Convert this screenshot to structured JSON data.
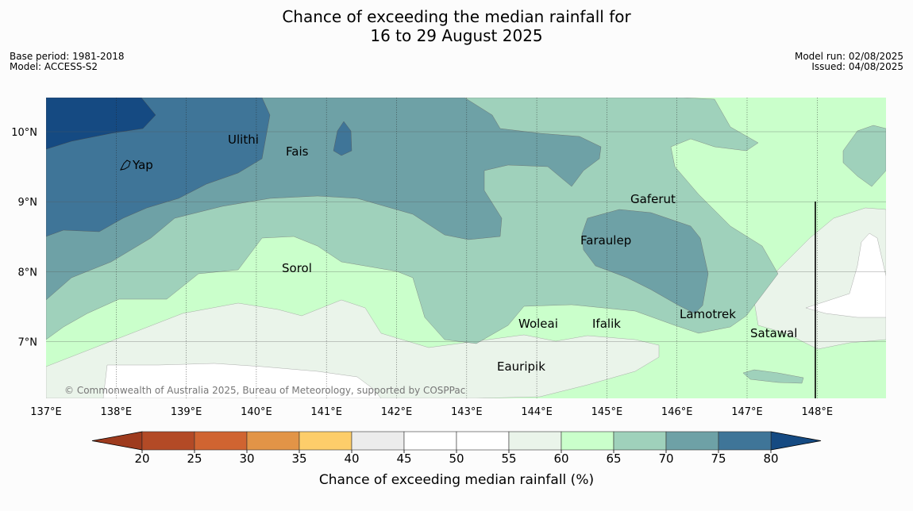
{
  "title": {
    "line1": "Chance of exceeding the median rainfall for",
    "line2": "16 to 29 August 2025"
  },
  "meta": {
    "base_period": "Base period: 1981-2018",
    "model": "Model: ACCESS-S2",
    "model_run": "Model run: 02/08/2025",
    "issued": "Issued: 04/08/2025"
  },
  "map": {
    "lon_labels": [
      "137°E",
      "138°E",
      "139°E",
      "140°E",
      "141°E",
      "142°E",
      "143°E",
      "144°E",
      "145°E",
      "146°E",
      "147°E",
      "148°E"
    ],
    "lat_labels": [
      "10°N",
      "9°N",
      "8°N",
      "7°N"
    ],
    "places": [
      "Yap",
      "Ulithi",
      "Fais",
      "Gaferut",
      "Faraulep",
      "Sorol",
      "Woleai",
      "Ifalik",
      "Lamotrek",
      "Satawal",
      "Eauripik"
    ],
    "copyright": "© Commonwealth of Australia 2025, Bureau of Meteorology, supported by COSPPac"
  },
  "colorbar": {
    "ticks": [
      "20",
      "25",
      "30",
      "35",
      "40",
      "45",
      "50",
      "55",
      "60",
      "65",
      "70",
      "75",
      "80"
    ],
    "colors": [
      "#b34a26",
      "#d06431",
      "#e29447",
      "#fdcd6a",
      "#ececec",
      "#ffffff",
      "#ffffff",
      "#eaf4ea",
      "#caffcb",
      "#9fd1bb",
      "#6ea1a6",
      "#3f7598"
    ],
    "under_color": "#9e3b1e",
    "over_color": "#154a82",
    "label": "Chance of exceeding median rainfall (%)"
  }
}
